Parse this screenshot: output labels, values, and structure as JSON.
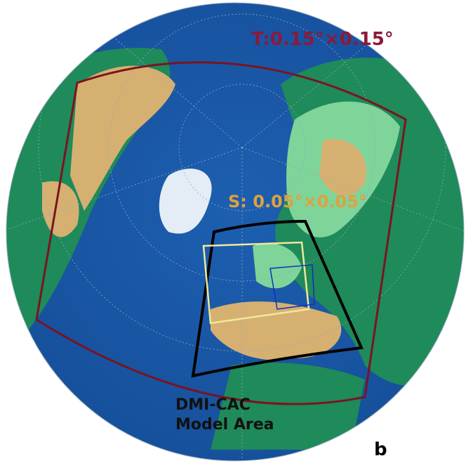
{
  "labels": {
    "t_resolution": "T:0.15°×0.15°",
    "s_resolution": "S: 0.05°×0.05°",
    "model_area_line1": "DMI-CAC",
    "model_area_line2": "Model Area",
    "panel": "b"
  }
}
